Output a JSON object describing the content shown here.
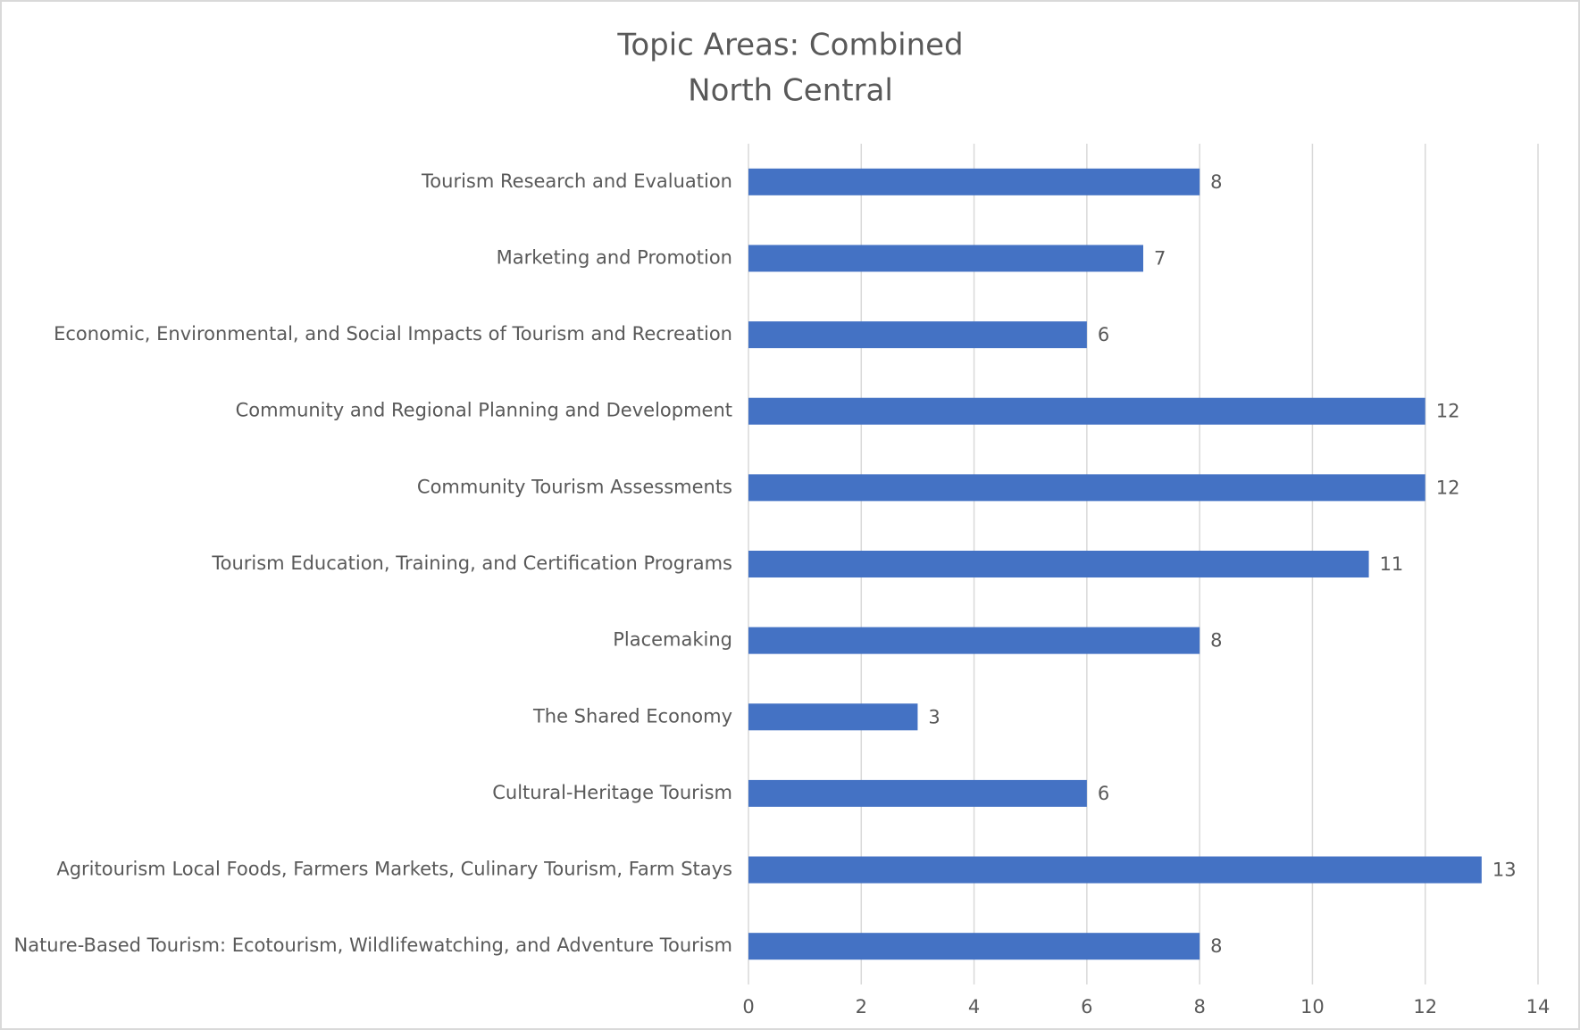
{
  "chart_data": {
    "type": "bar",
    "orientation": "horizontal",
    "title": [
      "Topic Areas: Combined",
      "North Central"
    ],
    "categories": [
      "Tourism Research and Evaluation",
      "Marketing and Promotion",
      "Economic, Environmental, and Social Impacts of Tourism and Recreation",
      "Community and Regional Planning and Development",
      "Community Tourism Assessments",
      "Tourism Education, Training, and Certification Programs",
      "Placemaking",
      "The Shared Economy",
      "Cultural-Heritage Tourism",
      "Agritourism Local Foods, Farmers Markets, Culinary Tourism, Farm Stays",
      "Nature-Based Tourism: Ecotourism, Wildlifewatching, and Adventure Tourism"
    ],
    "values": [
      8,
      7,
      6,
      12,
      12,
      11,
      8,
      3,
      6,
      13,
      8
    ],
    "color": "#4472c4",
    "xlim": [
      0,
      14
    ],
    "xticks": [
      0,
      2,
      4,
      6,
      8,
      10,
      12,
      14
    ],
    "grid": true
  }
}
